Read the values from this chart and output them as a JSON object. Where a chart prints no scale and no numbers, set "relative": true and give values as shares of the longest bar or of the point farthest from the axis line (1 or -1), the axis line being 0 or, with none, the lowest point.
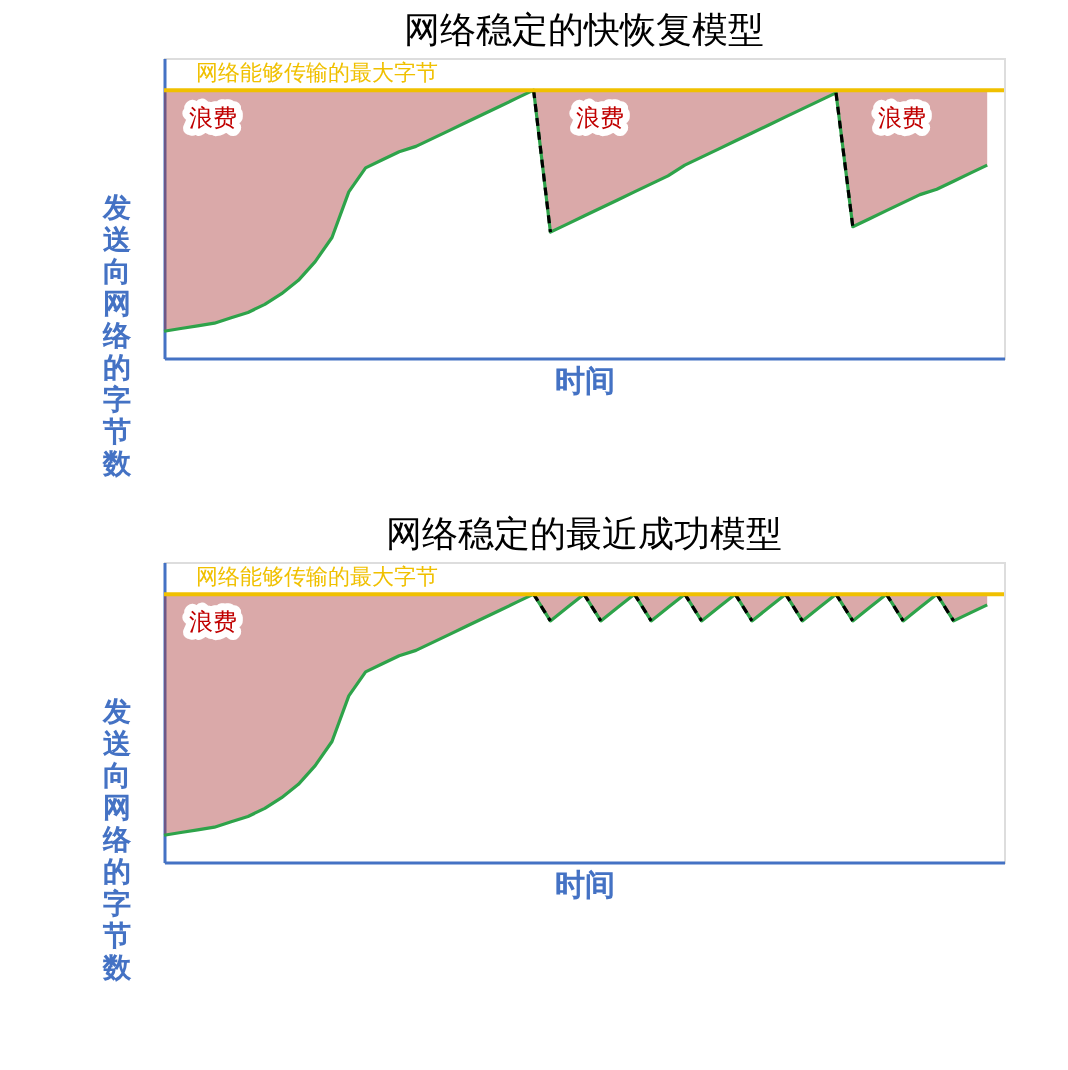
{
  "chart_data": [
    {
      "type": "line",
      "title": "网络稳定的快恢复模型",
      "xlabel": "时间",
      "ylabel": "发送向网络的字节数",
      "relative": true,
      "tick_labels": false,
      "categories": [
        null,
        null,
        null,
        null,
        null,
        null,
        null,
        null,
        null,
        null,
        null,
        null,
        null,
        null,
        null,
        null,
        null,
        null,
        null,
        null,
        null,
        null,
        null,
        null,
        null,
        null,
        null,
        null,
        null,
        null,
        null,
        null,
        null,
        null,
        null,
        null,
        null,
        null,
        null,
        null,
        null,
        null,
        null,
        null,
        null,
        null,
        null,
        null,
        null,
        null,
        null
      ],
      "series": [
        {
          "color": "#2ea34a",
          "values": [
            0.1,
            0.11,
            0.12,
            0.13,
            0.15,
            0.17,
            0.2,
            0.24,
            0.29,
            0.36,
            0.45,
            0.62,
            0.71,
            0.74,
            0.77,
            0.79,
            0.82,
            0.85,
            0.88,
            0.91,
            0.94,
            0.97,
            1,
            0.47,
            0.5,
            0.53,
            0.56,
            0.59,
            0.62,
            0.65,
            0.68,
            0.72,
            0.75,
            0.78,
            0.81,
            0.84,
            0.87,
            0.9,
            0.93,
            0.96,
            0.99,
            0.49,
            0.52,
            0.55,
            0.58,
            0.61,
            0.63,
            0.66,
            0.69,
            0.72,
            null
          ],
          "lower": [
            0.1,
            0.11,
            0.12,
            0.13,
            0.15,
            0.17,
            0.2,
            0.24,
            0.29,
            0.36,
            0.45,
            0.62,
            0.71,
            0.74,
            0.77,
            0.79,
            0.82,
            0.85,
            0.88,
            0.91,
            0.94,
            0.97,
            1,
            0.47,
            0.5,
            0.53,
            0.56,
            0.59,
            0.62,
            0.65,
            0.68,
            0.72,
            0.75,
            0.78,
            0.81,
            0.84,
            0.87,
            0.9,
            0.93,
            0.96,
            0.99,
            0.49,
            0.52,
            0.55,
            0.58,
            0.61,
            0.63,
            0.66,
            0.69,
            0.72,
            null
          ],
          "upper": [
            1,
            1,
            1,
            1,
            1,
            1,
            1,
            1,
            1,
            1,
            1,
            1,
            1,
            1,
            1,
            1,
            1,
            1,
            1,
            1,
            1,
            1,
            1,
            1,
            1,
            1,
            1,
            1,
            1,
            1,
            1,
            1,
            1,
            1,
            1,
            1,
            1,
            1,
            1,
            1,
            1,
            1,
            1,
            1,
            1,
            1,
            1,
            1,
            1,
            1,
            null
          ]
        },
        {
          "color": "#000000",
          "line_style": "dashed",
          "values": [
            null,
            null,
            null,
            null,
            null,
            null,
            null,
            null,
            null,
            null,
            null,
            null,
            null,
            null,
            null,
            null,
            null,
            null,
            null,
            null,
            null,
            null,
            1,
            0.47,
            null,
            null,
            null,
            null,
            null,
            null,
            null,
            null,
            null,
            null,
            null,
            null,
            null,
            null,
            null,
            null,
            0.99,
            0.49,
            null,
            null,
            null,
            null,
            null,
            null,
            null,
            null,
            null
          ]
        }
      ],
      "ref_lines": [
        {
          "axis": "y",
          "value": 1,
          "label": "网络能够传输的最大字节",
          "color": "#f0c000"
        }
      ],
      "annotations": [
        "浪费",
        "浪费",
        "浪费"
      ]
    },
    {
      "type": "line",
      "title": "网络稳定的最近成功模型",
      "xlabel": "时间",
      "ylabel": "发送向网络的字节数",
      "relative": true,
      "tick_labels": false,
      "categories": [
        null,
        null,
        null,
        null,
        null,
        null,
        null,
        null,
        null,
        null,
        null,
        null,
        null,
        null,
        null,
        null,
        null,
        null,
        null,
        null,
        null,
        null,
        null,
        null,
        null,
        null,
        null,
        null,
        null,
        null,
        null,
        null,
        null,
        null,
        null,
        null,
        null,
        null,
        null,
        null,
        null,
        null,
        null,
        null,
        null,
        null,
        null,
        null,
        null,
        null,
        null
      ],
      "series": [
        {
          "color": "#2ea34a",
          "values": [
            0.1,
            0.11,
            0.12,
            0.13,
            0.15,
            0.17,
            0.2,
            0.24,
            0.29,
            0.36,
            0.45,
            0.62,
            0.71,
            0.74,
            0.77,
            0.79,
            0.82,
            0.85,
            0.88,
            0.91,
            0.94,
            0.97,
            1,
            0.9,
            0.95,
            1,
            0.9,
            0.95,
            1,
            0.9,
            0.95,
            1,
            0.9,
            0.95,
            1,
            0.9,
            0.95,
            1,
            0.9,
            0.95,
            1,
            0.9,
            0.95,
            1,
            0.9,
            0.95,
            1,
            0.9,
            0.93,
            0.96,
            null
          ],
          "lower": [
            0.1,
            0.11,
            0.12,
            0.13,
            0.15,
            0.17,
            0.2,
            0.24,
            0.29,
            0.36,
            0.45,
            0.62,
            0.71,
            0.74,
            0.77,
            0.79,
            0.82,
            0.85,
            0.88,
            0.91,
            0.94,
            0.97,
            1,
            0.9,
            0.95,
            1,
            0.9,
            0.95,
            1,
            0.9,
            0.95,
            1,
            0.9,
            0.95,
            1,
            0.9,
            0.95,
            1,
            0.9,
            0.95,
            1,
            0.9,
            0.95,
            1,
            0.9,
            0.95,
            1,
            0.9,
            0.93,
            0.96,
            null
          ],
          "upper": [
            1,
            1,
            1,
            1,
            1,
            1,
            1,
            1,
            1,
            1,
            1,
            1,
            1,
            1,
            1,
            1,
            1,
            1,
            1,
            1,
            1,
            1,
            1,
            1,
            1,
            1,
            1,
            1,
            1,
            1,
            1,
            1,
            1,
            1,
            1,
            1,
            1,
            1,
            1,
            1,
            1,
            1,
            1,
            1,
            1,
            1,
            1,
            1,
            1,
            1,
            null
          ]
        },
        {
          "color": "#000000",
          "line_style": "dashed",
          "values": [
            null,
            null,
            null,
            null,
            null,
            null,
            null,
            null,
            null,
            null,
            null,
            null,
            null,
            null,
            null,
            null,
            null,
            null,
            null,
            null,
            null,
            null,
            1,
            0.9,
            null,
            1,
            0.9,
            null,
            1,
            0.9,
            null,
            1,
            0.9,
            null,
            1,
            0.9,
            null,
            1,
            0.9,
            null,
            1,
            0.9,
            null,
            1,
            0.9,
            null,
            1,
            0.9,
            null,
            null,
            null
          ]
        }
      ],
      "ref_lines": [
        {
          "axis": "y",
          "value": 1,
          "label": "网络能够传输的最大字节",
          "color": "#f0c000"
        }
      ],
      "annotations": [
        "浪费"
      ]
    }
  ]
}
